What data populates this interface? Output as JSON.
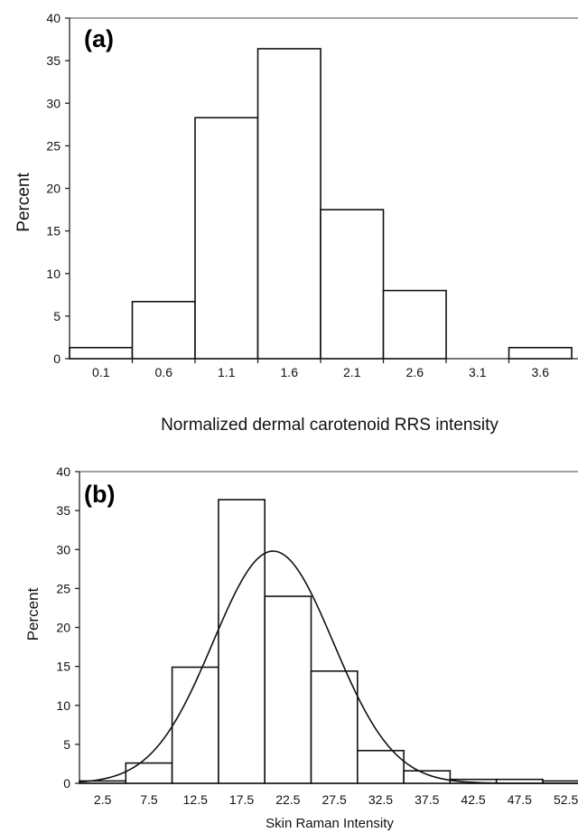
{
  "chart_data": [
    {
      "type": "bar",
      "panel_label": "(a)",
      "xlabel": "Normalized dermal carotenoid RRS intensity",
      "ylabel": "Percent",
      "ylim": [
        0,
        40
      ],
      "yticks": [
        0,
        5,
        10,
        15,
        20,
        25,
        30,
        35,
        40
      ],
      "xtick_labels": [
        "0.1",
        "0.6",
        "1.1",
        "1.6",
        "2.1",
        "2.6",
        "3.1",
        "3.6"
      ],
      "bin_edges": [
        0.35,
        0.85,
        1.35,
        1.85,
        2.35,
        2.85,
        3.35
      ],
      "bins": [
        {
          "lo": -0.15,
          "hi": 0.35,
          "value": 1.3
        },
        {
          "lo": 0.35,
          "hi": 0.85,
          "value": 6.7
        },
        {
          "lo": 0.85,
          "hi": 1.35,
          "value": 28.3
        },
        {
          "lo": 1.35,
          "hi": 1.85,
          "value": 36.4
        },
        {
          "lo": 1.85,
          "hi": 2.35,
          "value": 17.5
        },
        {
          "lo": 2.35,
          "hi": 2.85,
          "value": 8.0
        },
        {
          "lo": 2.85,
          "hi": 3.35,
          "value": 0
        },
        {
          "lo": 3.35,
          "hi": 3.85,
          "value": 1.3
        }
      ]
    },
    {
      "type": "bar",
      "panel_label": "(b)",
      "xlabel": "Skin Raman Intensity",
      "ylabel": "Percent",
      "ylim": [
        0,
        40
      ],
      "yticks": [
        0,
        5,
        10,
        15,
        20,
        25,
        30,
        35,
        40
      ],
      "xtick_labels": [
        "2.5",
        "7.5",
        "12.5",
        "17.5",
        "22.5",
        "27.5",
        "32.5",
        "37.5",
        "42.5",
        "47.5",
        "52.5"
      ],
      "bins": [
        {
          "lo": 0,
          "hi": 5,
          "value": 0.3
        },
        {
          "lo": 5,
          "hi": 10,
          "value": 2.6
        },
        {
          "lo": 10,
          "hi": 15,
          "value": 14.9
        },
        {
          "lo": 15,
          "hi": 20,
          "value": 36.4
        },
        {
          "lo": 20,
          "hi": 25,
          "value": 24.0
        },
        {
          "lo": 25,
          "hi": 30,
          "value": 14.4
        },
        {
          "lo": 30,
          "hi": 35,
          "value": 4.2
        },
        {
          "lo": 35,
          "hi": 40,
          "value": 1.6
        },
        {
          "lo": 40,
          "hi": 45,
          "value": 0.5
        },
        {
          "lo": 45,
          "hi": 50,
          "value": 0.5
        },
        {
          "lo": 50,
          "hi": 55,
          "value": 0.3
        }
      ],
      "normal_fit": {
        "mean": 20.9,
        "sd": 6.5,
        "peak": 29.8
      }
    }
  ]
}
